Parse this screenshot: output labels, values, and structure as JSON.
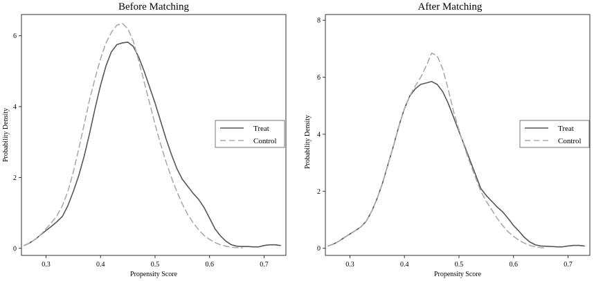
{
  "chart_data": [
    {
      "type": "line",
      "title": "Before Matching",
      "xlabel": "Propensity Score",
      "ylabel": "Probability Density",
      "xlim": [
        0.255,
        0.74
      ],
      "ylim": [
        -0.2,
        6.6
      ],
      "xticks": [
        0.3,
        0.4,
        0.5,
        0.6,
        0.7
      ],
      "xtick_labels": [
        "0.3",
        "0.4",
        "0.5",
        "0.6",
        "0.7"
      ],
      "yticks": [
        0,
        2,
        4,
        6
      ],
      "ytick_labels": [
        "0",
        "2",
        "4",
        "6"
      ],
      "grid": false,
      "legend_position": "right",
      "series": [
        {
          "name": "Treat",
          "style": "solid",
          "color": "#555555",
          "x": [
            0.26,
            0.27,
            0.28,
            0.29,
            0.3,
            0.31,
            0.32,
            0.33,
            0.34,
            0.35,
            0.36,
            0.37,
            0.38,
            0.39,
            0.4,
            0.41,
            0.42,
            0.43,
            0.44,
            0.45,
            0.46,
            0.47,
            0.48,
            0.49,
            0.5,
            0.51,
            0.52,
            0.53,
            0.54,
            0.55,
            0.56,
            0.57,
            0.58,
            0.59,
            0.6,
            0.61,
            0.62,
            0.63,
            0.64,
            0.65,
            0.66,
            0.67,
            0.68,
            0.69,
            0.7,
            0.71,
            0.72,
            0.73
          ],
          "y": [
            0.08,
            0.15,
            0.25,
            0.38,
            0.5,
            0.62,
            0.75,
            0.9,
            1.2,
            1.6,
            2.05,
            2.6,
            3.25,
            3.95,
            4.6,
            5.15,
            5.55,
            5.75,
            5.8,
            5.82,
            5.7,
            5.4,
            5.0,
            4.55,
            4.1,
            3.6,
            3.1,
            2.65,
            2.25,
            1.95,
            1.75,
            1.55,
            1.38,
            1.15,
            0.85,
            0.55,
            0.35,
            0.2,
            0.1,
            0.06,
            0.05,
            0.05,
            0.04,
            0.04,
            0.08,
            0.1,
            0.1,
            0.08
          ]
        },
        {
          "name": "Control",
          "style": "dashed",
          "color": "#aaaaaa",
          "x": [
            0.26,
            0.27,
            0.28,
            0.29,
            0.3,
            0.31,
            0.32,
            0.33,
            0.34,
            0.35,
            0.36,
            0.37,
            0.38,
            0.39,
            0.4,
            0.41,
            0.42,
            0.43,
            0.44,
            0.45,
            0.46,
            0.47,
            0.48,
            0.49,
            0.5,
            0.51,
            0.52,
            0.53,
            0.54,
            0.55,
            0.56,
            0.57,
            0.58,
            0.59,
            0.6,
            0.61,
            0.62,
            0.63,
            0.64,
            0.65,
            0.66
          ],
          "y": [
            0.08,
            0.15,
            0.25,
            0.38,
            0.55,
            0.72,
            0.92,
            1.2,
            1.6,
            2.15,
            2.8,
            3.5,
            4.2,
            4.8,
            5.35,
            5.8,
            6.1,
            6.3,
            6.35,
            6.2,
            5.85,
            5.3,
            4.7,
            4.1,
            3.5,
            2.95,
            2.45,
            2.0,
            1.6,
            1.25,
            0.95,
            0.72,
            0.52,
            0.36,
            0.25,
            0.16,
            0.1,
            0.06,
            0.03,
            0.02,
            0.01
          ]
        }
      ]
    },
    {
      "type": "line",
      "title": "After Matching",
      "xlabel": "Propensity Score",
      "ylabel": "Probability Density",
      "xlim": [
        0.255,
        0.74
      ],
      "ylim": [
        -0.25,
        8.2
      ],
      "xticks": [
        0.3,
        0.4,
        0.5,
        0.6,
        0.7
      ],
      "xtick_labels": [
        "0.3",
        "0.4",
        "0.5",
        "0.6",
        "0.7"
      ],
      "yticks": [
        0,
        2,
        4,
        6,
        8
      ],
      "ytick_labels": [
        "0",
        "2",
        "4",
        "6",
        "8"
      ],
      "grid": false,
      "legend_position": "right",
      "series": [
        {
          "name": "Treat",
          "style": "solid",
          "color": "#555555",
          "x": [
            0.26,
            0.27,
            0.28,
            0.29,
            0.3,
            0.31,
            0.32,
            0.33,
            0.34,
            0.35,
            0.36,
            0.37,
            0.38,
            0.39,
            0.4,
            0.41,
            0.42,
            0.43,
            0.44,
            0.45,
            0.46,
            0.47,
            0.48,
            0.49,
            0.5,
            0.51,
            0.52,
            0.53,
            0.54,
            0.55,
            0.56,
            0.57,
            0.58,
            0.59,
            0.6,
            0.61,
            0.62,
            0.63,
            0.64,
            0.65,
            0.66,
            0.67,
            0.68,
            0.69,
            0.7,
            0.71,
            0.72,
            0.73
          ],
          "y": [
            0.08,
            0.15,
            0.25,
            0.38,
            0.5,
            0.62,
            0.75,
            0.95,
            1.3,
            1.75,
            2.3,
            2.95,
            3.6,
            4.3,
            4.9,
            5.35,
            5.6,
            5.75,
            5.8,
            5.85,
            5.75,
            5.5,
            5.1,
            4.6,
            4.1,
            3.6,
            3.1,
            2.6,
            2.1,
            1.85,
            1.65,
            1.45,
            1.28,
            1.05,
            0.8,
            0.6,
            0.38,
            0.22,
            0.12,
            0.08,
            0.07,
            0.06,
            0.05,
            0.05,
            0.08,
            0.1,
            0.1,
            0.08
          ]
        },
        {
          "name": "Control",
          "style": "dashed",
          "color": "#aaaaaa",
          "x": [
            0.26,
            0.27,
            0.28,
            0.29,
            0.3,
            0.31,
            0.32,
            0.33,
            0.34,
            0.35,
            0.36,
            0.37,
            0.38,
            0.39,
            0.4,
            0.41,
            0.42,
            0.43,
            0.44,
            0.45,
            0.46,
            0.47,
            0.48,
            0.49,
            0.5,
            0.51,
            0.52,
            0.53,
            0.54,
            0.55,
            0.56,
            0.57,
            0.58,
            0.59,
            0.6,
            0.61,
            0.62,
            0.63,
            0.64,
            0.65,
            0.66
          ],
          "y": [
            0.08,
            0.15,
            0.25,
            0.38,
            0.5,
            0.62,
            0.75,
            0.95,
            1.3,
            1.75,
            2.3,
            2.95,
            3.6,
            4.3,
            4.9,
            5.35,
            5.7,
            6.0,
            6.4,
            6.85,
            6.75,
            6.3,
            5.6,
            4.8,
            4.15,
            3.55,
            3.0,
            2.5,
            2.0,
            1.65,
            1.35,
            1.05,
            0.8,
            0.58,
            0.42,
            0.28,
            0.18,
            0.1,
            0.05,
            0.02,
            0.01
          ]
        }
      ]
    }
  ]
}
